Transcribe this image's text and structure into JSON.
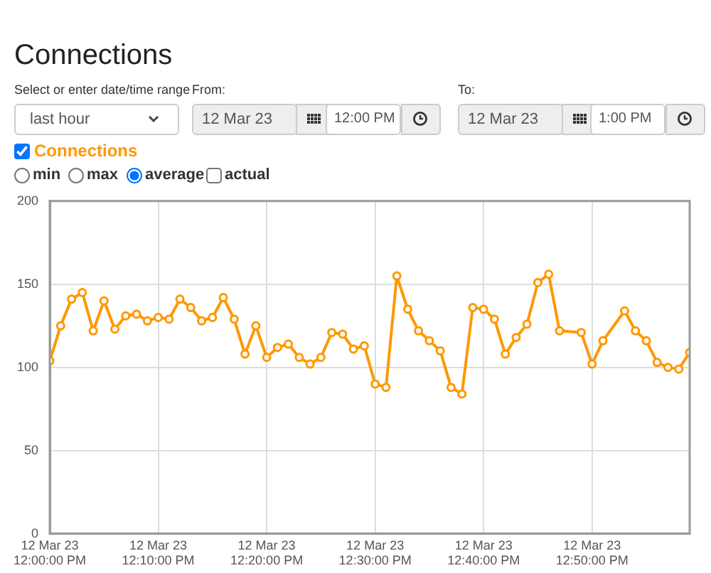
{
  "chart_data": {
    "type": "line",
    "title": "Connections",
    "annotations": [
      "Select or enter date/time range",
      "From:",
      "To:",
      "last hour",
      "12 Mar 23",
      "12:00 PM",
      "12 Mar 23",
      "1:00 PM",
      "min",
      "max",
      "average",
      "actual"
    ],
    "x": [
      "--03-12T12:00",
      "--03-12T12:01",
      "--03-12T12:02",
      "--03-12T12:03",
      "--03-12T12:04",
      "--03-12T12:05",
      "--03-12T12:06",
      "--03-12T12:07",
      "--03-12T12:08",
      "--03-12T12:09",
      "--03-12T12:10",
      "--03-12T12:11",
      "--03-12T12:12",
      "--03-12T12:13",
      "--03-12T12:14",
      "--03-12T12:15",
      "--03-12T12:16",
      "--03-12T12:17",
      "--03-12T12:18",
      "--03-12T12:19",
      "--03-12T12:20",
      "--03-12T12:21",
      "--03-12T12:22",
      "--03-12T12:23",
      "--03-12T12:24",
      "--03-12T12:25",
      "--03-12T12:26",
      "--03-12T12:27",
      "--03-12T12:28",
      "--03-12T12:29",
      "--03-12T12:30",
      "--03-12T12:31",
      "--03-12T12:32",
      "--03-12T12:33",
      "--03-12T12:34",
      "--03-12T12:35",
      "--03-12T12:36",
      "--03-12T12:37",
      "--03-12T12:38",
      "--03-12T12:39",
      "--03-12T12:40",
      "--03-12T12:41",
      "--03-12T12:42",
      "--03-12T12:43",
      "--03-12T12:44",
      "--03-12T12:45",
      "--03-12T12:46",
      "--03-12T12:47",
      "--03-12T12:49",
      "--03-12T12:50",
      "--03-12T12:51",
      "--03-12T12:53",
      "--03-12T12:54",
      "--03-12T12:55",
      "--03-12T12:56",
      "--03-12T12:57",
      "--03-12T12:58",
      "--03-12T12:59"
    ],
    "series": [
      {
        "name": "Connections",
        "color": "#ff9800",
        "values": [
          104,
          125,
          141,
          145,
          122,
          140,
          123,
          131,
          132,
          128,
          130,
          129,
          141,
          136,
          128,
          130,
          142,
          129,
          108,
          125,
          106,
          112,
          114,
          106,
          102,
          106,
          121,
          120,
          111,
          113,
          90,
          88,
          155,
          135,
          122,
          116,
          110,
          88,
          84,
          136,
          135,
          129,
          108,
          118,
          126,
          151,
          156,
          122,
          121,
          102,
          116,
          134,
          122,
          116,
          103,
          100,
          99,
          109
        ]
      }
    ],
    "xlim": [
      "--03-12T12:00",
      "--03-12T12:59"
    ],
    "xticks": [
      {
        "value": "--03-12T12:00",
        "label": "12 Mar 23\n12:00:00 PM"
      },
      {
        "value": "--03-12T12:10",
        "label": "12 Mar 23\n12:10:00 PM"
      },
      {
        "value": "--03-12T12:20",
        "label": "12 Mar 23\n12:20:00 PM"
      },
      {
        "value": "--03-12T12:30",
        "label": "12 Mar 23\n12:30:00 PM"
      },
      {
        "value": "--03-12T12:40",
        "label": "12 Mar 23\n12:40:00 PM"
      },
      {
        "value": "--03-12T12:50",
        "label": "12 Mar 23\n12:50:00 PM"
      }
    ],
    "ylim": [
      0,
      200
    ],
    "yticks": [
      0,
      50,
      100,
      150,
      200
    ],
    "grid": true,
    "legend": "top left",
    "marker": "circle",
    "line_style": "solid"
  }
}
